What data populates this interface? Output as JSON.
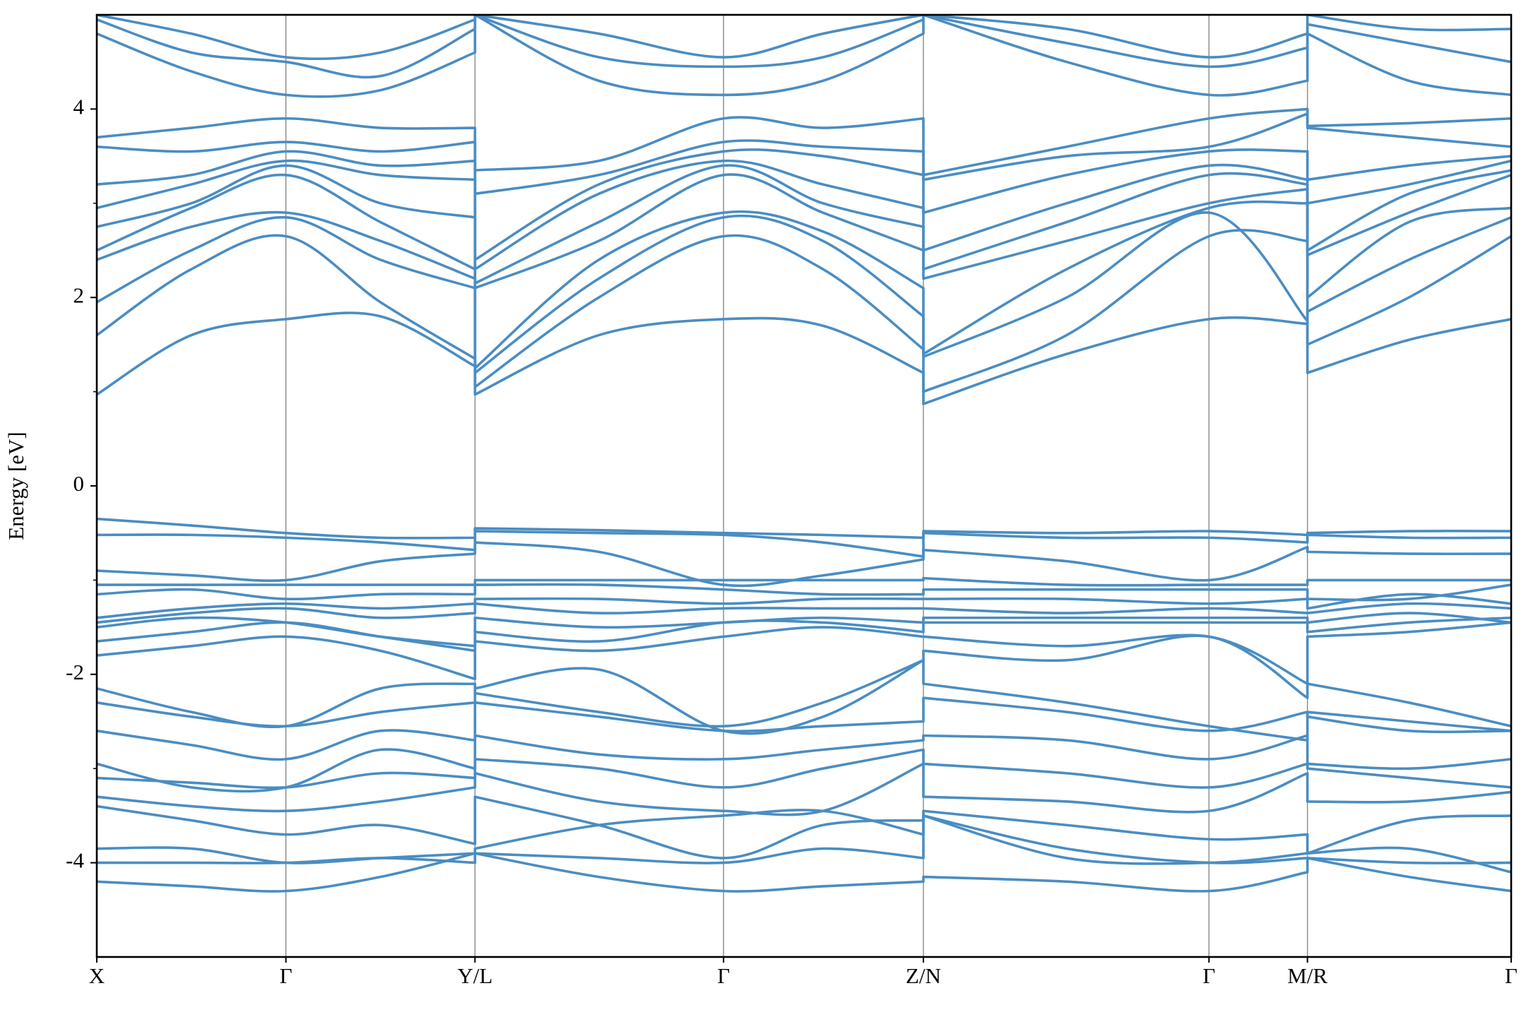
{
  "chart_data": {
    "type": "band-structure",
    "ylabel": "Energy [eV]",
    "color": "#4a8dc2",
    "ylim": [
      -5,
      5
    ],
    "yticks": [
      -4,
      -2,
      0,
      2,
      4
    ],
    "yminorticks": [
      -3,
      -1,
      1,
      3
    ],
    "xlim": [
      0,
      14.51
    ],
    "xticks": [
      {
        "value": 0,
        "label": "X"
      },
      {
        "value": 1.94,
        "label": "Γ"
      },
      {
        "value": 3.88,
        "label": "Y/L"
      },
      {
        "value": 6.43,
        "label": "Γ"
      },
      {
        "value": 8.48,
        "label": "Z/N"
      },
      {
        "value": 11.41,
        "label": "Γ"
      },
      {
        "value": 12.42,
        "label": "M/R"
      },
      {
        "value": 14.51,
        "label": "Γ"
      }
    ],
    "grid": "x",
    "x": [
      0,
      0.97,
      1.94,
      2.91,
      3.88,
      3.88,
      5.15,
      6.43,
      7.45,
      8.48,
      8.48,
      9.95,
      11.41,
      12.42,
      12.42,
      13.46,
      14.51
    ],
    "series": [
      {
        "values": [
          0.97,
          1.6,
          1.77,
          1.8,
          1.27,
          0.97,
          1.6,
          1.77,
          1.7,
          1.2,
          0.87,
          1.4,
          1.77,
          1.72,
          1.2,
          1.55,
          1.77
        ]
      },
      {
        "values": [
          1.6,
          2.3,
          2.65,
          1.95,
          1.35,
          1.05,
          2.0,
          2.65,
          2.3,
          1.45,
          1.0,
          1.6,
          2.65,
          2.6,
          1.5,
          2.0,
          2.65
        ]
      },
      {
        "values": [
          1.95,
          2.5,
          2.85,
          2.4,
          2.1,
          1.2,
          2.2,
          2.85,
          2.6,
          1.8,
          1.37,
          2.0,
          2.9,
          1.75,
          1.85,
          2.4,
          2.85
        ]
      },
      {
        "values": [
          2.4,
          2.75,
          2.9,
          2.6,
          2.2,
          1.25,
          2.4,
          2.9,
          2.7,
          2.1,
          1.4,
          2.3,
          2.95,
          3.0,
          2.0,
          2.8,
          2.95
        ]
      },
      {
        "values": [
          2.5,
          2.95,
          3.3,
          2.8,
          2.3,
          2.1,
          2.6,
          3.3,
          2.9,
          2.5,
          2.2,
          2.6,
          3.0,
          3.15,
          2.45,
          2.9,
          3.3
        ]
      },
      {
        "values": [
          2.75,
          3.0,
          3.4,
          3.0,
          2.85,
          2.15,
          2.8,
          3.4,
          3.0,
          2.75,
          2.3,
          2.8,
          3.3,
          3.2,
          2.5,
          3.1,
          3.35
        ]
      },
      {
        "values": [
          2.95,
          3.2,
          3.45,
          3.3,
          3.25,
          2.3,
          3.1,
          3.45,
          3.2,
          2.95,
          2.5,
          3.0,
          3.4,
          3.25,
          3.0,
          3.2,
          3.45
        ]
      },
      {
        "values": [
          3.2,
          3.3,
          3.55,
          3.4,
          3.45,
          2.4,
          3.2,
          3.55,
          3.5,
          3.3,
          2.9,
          3.3,
          3.55,
          3.55,
          3.25,
          3.4,
          3.5
        ]
      },
      {
        "values": [
          3.6,
          3.55,
          3.65,
          3.55,
          3.65,
          3.1,
          3.3,
          3.65,
          3.6,
          3.55,
          3.25,
          3.5,
          3.6,
          3.95,
          3.8,
          3.7,
          3.6
        ]
      },
      {
        "values": [
          3.7,
          3.8,
          3.9,
          3.8,
          3.8,
          3.35,
          3.45,
          3.9,
          3.8,
          3.9,
          3.3,
          3.6,
          3.9,
          4.0,
          3.82,
          3.85,
          3.9
        ]
      },
      {
        "values": [
          4.8,
          4.4,
          4.15,
          4.2,
          4.6,
          5.0,
          4.3,
          4.15,
          4.3,
          4.8,
          5.0,
          4.5,
          4.15,
          4.3,
          4.8,
          4.3,
          4.15
        ]
      },
      {
        "values": [
          4.95,
          4.6,
          4.5,
          4.35,
          4.85,
          5.0,
          4.55,
          4.45,
          4.55,
          4.95,
          5.0,
          4.7,
          4.45,
          4.65,
          4.9,
          4.7,
          4.5
        ]
      },
      {
        "values": [
          5.0,
          4.8,
          4.55,
          4.6,
          4.95,
          5.0,
          4.8,
          4.55,
          4.8,
          5.0,
          5.0,
          4.85,
          4.55,
          4.8,
          5.0,
          4.85,
          4.85
        ]
      },
      {
        "values": [
          -0.35,
          -0.42,
          -0.5,
          -0.55,
          -0.55,
          -0.45,
          -0.47,
          -0.5,
          -0.52,
          -0.55,
          -0.48,
          -0.5,
          -0.48,
          -0.52,
          -0.5,
          -0.48,
          -0.48
        ]
      },
      {
        "values": [
          -0.52,
          -0.52,
          -0.55,
          -0.6,
          -0.68,
          -0.48,
          -0.5,
          -0.52,
          -0.6,
          -0.75,
          -0.5,
          -0.55,
          -0.55,
          -0.6,
          -0.52,
          -0.55,
          -0.55
        ]
      },
      {
        "values": [
          -0.9,
          -0.95,
          -1.0,
          -0.8,
          -0.72,
          -0.6,
          -0.7,
          -1.05,
          -0.95,
          -0.78,
          -0.68,
          -0.8,
          -1.0,
          -0.65,
          -0.7,
          -0.72,
          -0.72
        ]
      },
      {
        "values": [
          -1.05,
          -1.05,
          -1.05,
          -1.05,
          -1.05,
          -1.0,
          -1.0,
          -1.0,
          -1.0,
          -1.0,
          -0.98,
          -1.05,
          -1.05,
          -1.05,
          -1.0,
          -1.0,
          -1.0
        ]
      },
      {
        "values": [
          -1.15,
          -1.1,
          -1.2,
          -1.15,
          -1.15,
          -1.05,
          -1.05,
          -1.1,
          -1.15,
          -1.15,
          -1.1,
          -1.1,
          -1.1,
          -1.1,
          -1.2,
          -1.2,
          -1.05
        ]
      },
      {
        "values": [
          -1.4,
          -1.3,
          -1.25,
          -1.3,
          -1.25,
          -1.2,
          -1.2,
          -1.25,
          -1.2,
          -1.2,
          -1.2,
          -1.2,
          -1.25,
          -1.2,
          -1.3,
          -1.15,
          -1.25
        ]
      },
      {
        "values": [
          -1.45,
          -1.35,
          -1.3,
          -1.4,
          -1.35,
          -1.25,
          -1.35,
          -1.3,
          -1.3,
          -1.3,
          -1.3,
          -1.35,
          -1.3,
          -1.35,
          -1.35,
          -1.25,
          -1.3
        ]
      },
      {
        "values": [
          -1.5,
          -1.4,
          -1.45,
          -1.6,
          -1.7,
          -1.4,
          -1.5,
          -1.45,
          -1.4,
          -1.45,
          -1.4,
          -1.4,
          -1.4,
          -1.4,
          -1.45,
          -1.35,
          -1.45
        ]
      },
      {
        "values": [
          -1.65,
          -1.55,
          -1.45,
          -1.6,
          -1.75,
          -1.55,
          -1.65,
          -1.45,
          -1.45,
          -1.55,
          -1.45,
          -1.45,
          -1.45,
          -1.45,
          -1.55,
          -1.45,
          -1.4
        ]
      },
      {
        "values": [
          -1.8,
          -1.7,
          -1.6,
          -1.75,
          -2.05,
          -1.65,
          -1.75,
          -1.6,
          -1.5,
          -1.6,
          -1.6,
          -1.7,
          -1.6,
          -2.1,
          -1.6,
          -1.55,
          -1.45
        ]
      },
      {
        "values": [
          -2.15,
          -2.4,
          -2.55,
          -2.15,
          -2.1,
          -2.2,
          -2.4,
          -2.55,
          -2.3,
          -1.85,
          -1.75,
          -1.85,
          -1.6,
          -2.25,
          -2.1,
          -2.3,
          -2.55
        ]
      },
      {
        "values": [
          -2.3,
          -2.45,
          -2.55,
          -2.4,
          -2.3,
          -2.15,
          -1.95,
          -2.6,
          -2.45,
          -1.85,
          -2.1,
          -2.3,
          -2.55,
          -2.7,
          -2.4,
          -2.5,
          -2.6
        ]
      },
      {
        "values": [
          -2.6,
          -2.75,
          -2.9,
          -2.6,
          -2.7,
          -2.3,
          -2.45,
          -2.6,
          -2.55,
          -2.5,
          -2.25,
          -2.4,
          -2.6,
          -2.4,
          -2.45,
          -2.6,
          -2.6
        ]
      },
      {
        "values": [
          -2.95,
          -3.2,
          -3.2,
          -2.8,
          -3.0,
          -2.65,
          -2.85,
          -2.9,
          -2.8,
          -2.7,
          -2.65,
          -2.7,
          -2.9,
          -2.65,
          -2.95,
          -3.0,
          -2.9
        ]
      },
      {
        "values": [
          -3.1,
          -3.15,
          -3.2,
          -3.05,
          -3.1,
          -2.9,
          -3.0,
          -3.2,
          -3.0,
          -2.8,
          -2.95,
          -3.05,
          -3.2,
          -2.95,
          -3.0,
          -3.1,
          -3.2
        ]
      },
      {
        "values": [
          -3.3,
          -3.4,
          -3.45,
          -3.35,
          -3.2,
          -3.05,
          -3.35,
          -3.45,
          -3.45,
          -2.95,
          -3.3,
          -3.35,
          -3.45,
          -3.05,
          -3.35,
          -3.35,
          -3.25
        ]
      },
      {
        "values": [
          -3.4,
          -3.55,
          -3.7,
          -3.6,
          -3.8,
          -3.3,
          -3.6,
          -3.95,
          -3.6,
          -3.55,
          -3.45,
          -3.6,
          -3.75,
          -3.7,
          -3.9,
          -3.55,
          -3.5
        ]
      },
      {
        "values": [
          -3.85,
          -3.85,
          -4.0,
          -3.95,
          -3.9,
          -3.85,
          -3.6,
          -3.5,
          -3.45,
          -3.7,
          -3.5,
          -3.85,
          -4.0,
          -3.95,
          -3.95,
          -4.0,
          -4.0
        ]
      },
      {
        "values": [
          -4.0,
          -4.0,
          -4.0,
          -3.95,
          -4.0,
          -3.9,
          -3.95,
          -4.0,
          -3.85,
          -3.95,
          -3.5,
          -3.95,
          -4.0,
          -3.9,
          -3.9,
          -3.85,
          -4.1
        ]
      },
      {
        "values": [
          -4.2,
          -4.25,
          -4.3,
          -4.15,
          -3.9,
          -3.9,
          -4.15,
          -4.3,
          -4.25,
          -4.2,
          -4.15,
          -4.2,
          -4.3,
          -4.1,
          -3.95,
          -4.15,
          -4.3
        ]
      }
    ]
  }
}
